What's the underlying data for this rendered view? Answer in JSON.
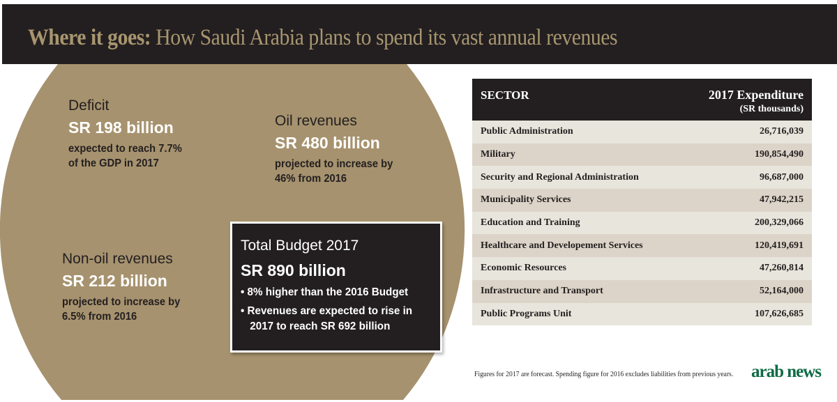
{
  "header": {
    "title_bold": "Where it goes:",
    "title_rest": " How Saudi Arabia plans to spend its vast annual revenues"
  },
  "stats": {
    "deficit": {
      "label": "Deficit",
      "value": "SR 198 billion",
      "desc1": "expected to reach 7.7%",
      "desc2": "of the GDP in 2017"
    },
    "oil": {
      "label": "Oil revenues",
      "value": "SR 480 billion",
      "desc1": "projected to increase by",
      "desc2": "46% from 2016"
    },
    "nonoil": {
      "label": "Non-oil revenues",
      "value": "SR 212 billion",
      "desc1": "projected to increase by",
      "desc2": "6.5% from 2016"
    }
  },
  "budget": {
    "label": "Total Budget 2017",
    "value": "SR 890 billion",
    "bullets": [
      "• 8% higher than the 2016 Budget",
      "• Revenues are expected to rise in 2017 to reach SR 692 billion"
    ]
  },
  "table": {
    "col1": "SECTOR",
    "col2": "2017 Expenditure",
    "col2_sub": "(SR thousands)",
    "rows": [
      {
        "sector": "Public Administration",
        "value": "26,716,039"
      },
      {
        "sector": "Military",
        "value": "190,854,490"
      },
      {
        "sector": "Security and Regional Administration",
        "value": "96,687,000"
      },
      {
        "sector": "Municipality Services",
        "value": "47,942,215"
      },
      {
        "sector": "Education and Training",
        "value": "200,329,066"
      },
      {
        "sector": "Healthcare and Developement Services",
        "value": "120,419,691"
      },
      {
        "sector": "Economic Resources",
        "value": "47,260,814"
      },
      {
        "sector": "Infrastructure and Transport",
        "value": "52,164,000"
      },
      {
        "sector": "Public Programs Unit",
        "value": "107,626,685"
      }
    ]
  },
  "footnote": "Figures for 2017 are forecast. Spending figure for 2016 excludes liabilities from previous years.",
  "logo": "arab news",
  "colors": {
    "dark": "#231f20",
    "gold": "#a6926e",
    "logo_green": "#0f6b44"
  }
}
